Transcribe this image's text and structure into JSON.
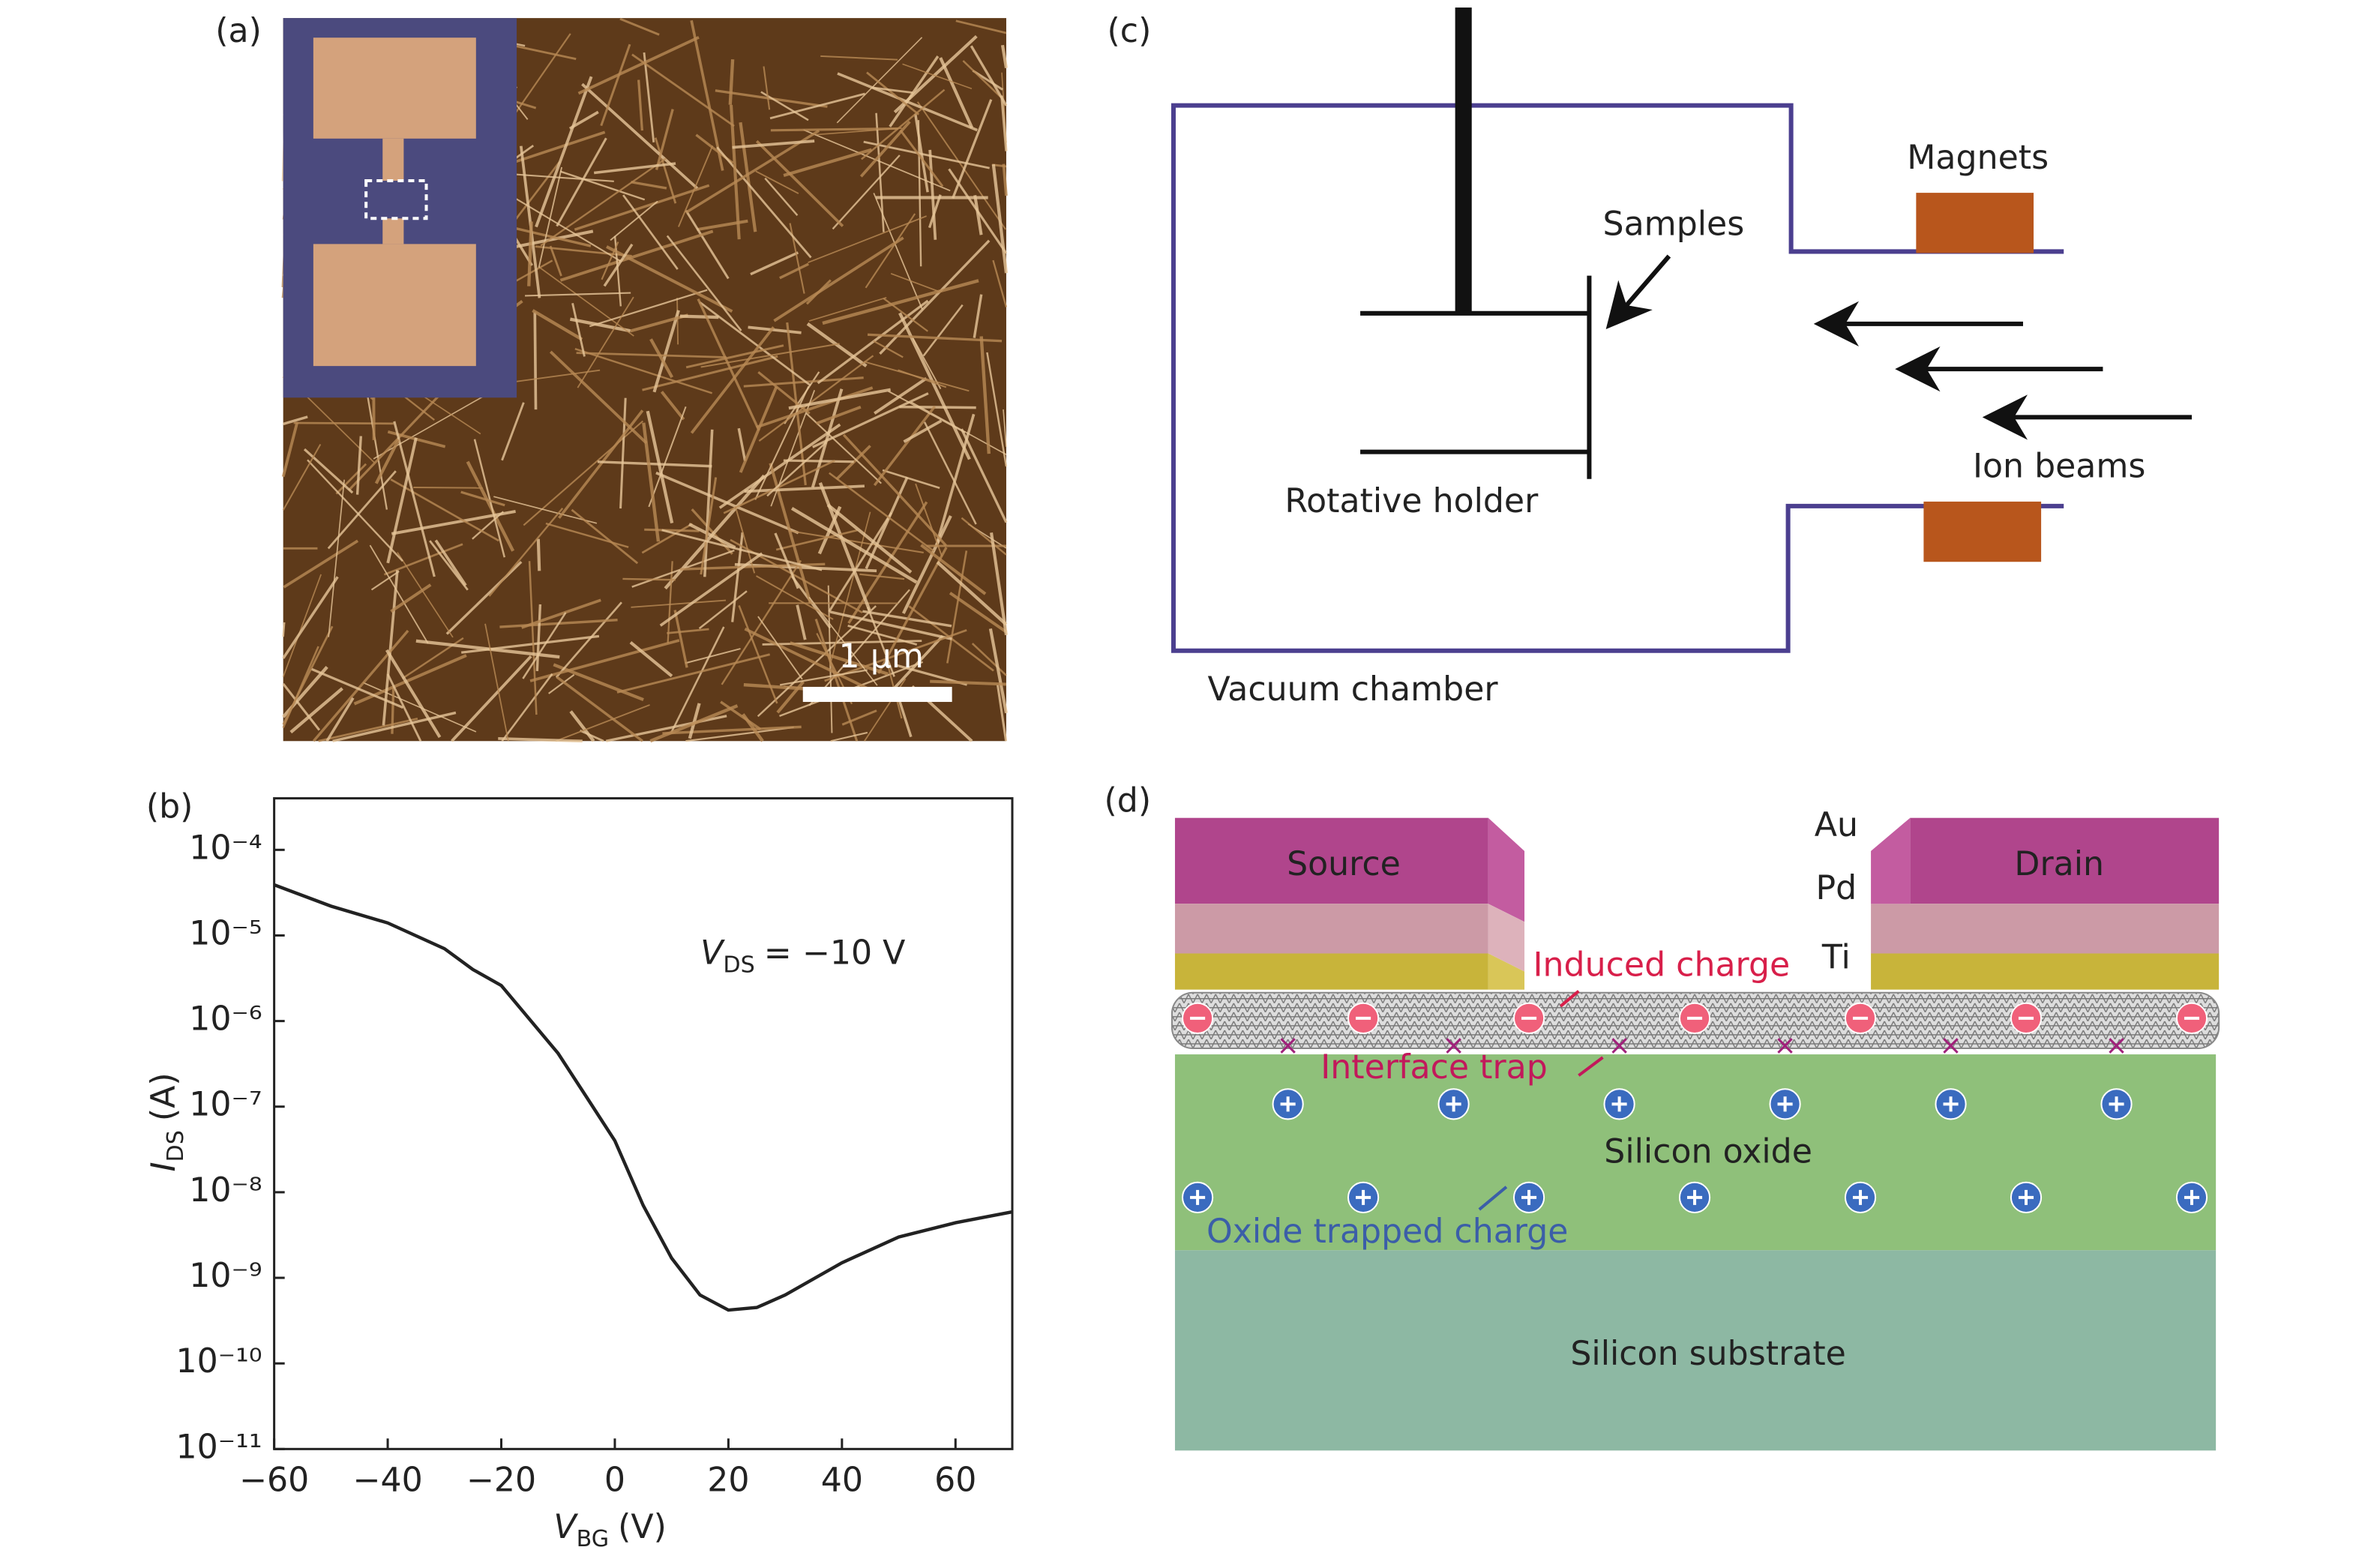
{
  "panel_labels": [
    "(a)",
    "(b)",
    "(c)",
    "(d)"
  ],
  "image_a": {
    "scale_bar": "1 µm"
  },
  "chart_data": {
    "type": "line",
    "yscale": "log",
    "grid": false,
    "x_label": {
      "main": "V",
      "sub": "BG",
      "unit": "(V)"
    },
    "y_label": {
      "main": "I",
      "sub": "DS",
      "unit": "(A)"
    },
    "annotation": {
      "main": "V",
      "sub": "DS",
      "rest": "= −10 V"
    },
    "xlim": [
      -60,
      70
    ],
    "ylim": [
      1e-11,
      0.0004
    ],
    "xticks": [
      {
        "value": -60,
        "label": "−60"
      },
      {
        "value": -40,
        "label": "−40"
      },
      {
        "value": -20,
        "label": "−20"
      },
      0,
      20,
      40,
      60
    ],
    "yticks": [
      {
        "value": 0.0001,
        "label": "10⁻⁴"
      },
      {
        "value": 1e-05,
        "label": "10⁻⁵"
      },
      {
        "value": 1e-06,
        "label": "10⁻⁶"
      },
      {
        "value": 1e-07,
        "label": "10⁻⁷"
      },
      {
        "value": 1e-08,
        "label": "10⁻⁸"
      },
      {
        "value": 1e-09,
        "label": "10⁻⁹"
      },
      {
        "value": 1e-10,
        "label": "10⁻¹⁰"
      },
      {
        "value": 1e-11,
        "label": "10⁻¹¹"
      }
    ],
    "series": [
      {
        "color": "#222222",
        "x": [
          -60,
          -50,
          -40,
          -30,
          -25,
          -20,
          -10,
          -5,
          0,
          5,
          10,
          15,
          20,
          25,
          30,
          40,
          50,
          60,
          70
        ],
        "values": [
          3.9e-05,
          2.2e-05,
          1.4e-05,
          7e-06,
          4e-06,
          2.6e-06,
          4.2e-07,
          1.3e-07,
          4e-08,
          7e-09,
          1.7e-09,
          6.3e-10,
          4.2e-10,
          4.5e-10,
          6.3e-10,
          1.5e-09,
          3e-09,
          4.4e-09,
          5.9e-09
        ]
      }
    ]
  },
  "diagram_c": {
    "samples": "Samples",
    "magnets": "Magnets",
    "ion_beams": "Ion beams",
    "holder": "Rotative holder",
    "chamber": "Vacuum chamber"
  },
  "diagram_d": {
    "source": "Source",
    "drain": "Drain",
    "au": "Au",
    "pd": "Pd",
    "ti": "Ti",
    "induced": "Induced charge",
    "trap": "Interface trap",
    "oxide": "Silicon oxide",
    "oxide_charge": "Oxide trapped charge",
    "substrate": "Silicon substrate"
  }
}
